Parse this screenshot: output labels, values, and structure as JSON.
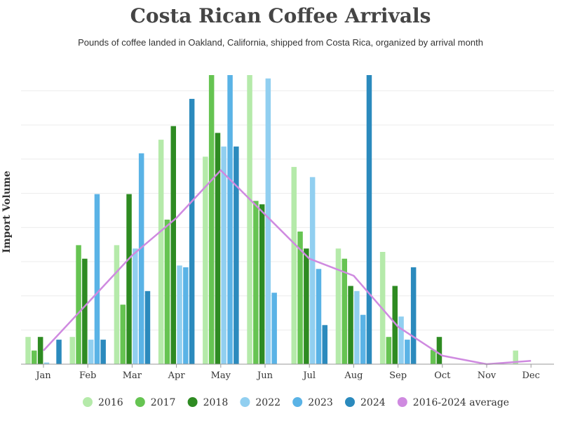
{
  "chart_data": {
    "type": "bar",
    "title": "Costa Rican Coffee Arrivals",
    "subtitle": "Pounds of coffee landed in Oakland, California, shipped from Costa Rica, organized by arrival month",
    "ylabel": "Import Volume",
    "xlabel": "",
    "categories": [
      "Jan",
      "Feb",
      "Mar",
      "Apr",
      "May",
      "Jun",
      "Jul",
      "Aug",
      "Sep",
      "Oct",
      "Nov",
      "Dec"
    ],
    "ylim": [
      0,
      8.5
    ],
    "grid": true,
    "legend_position": "bottom",
    "series": [
      {
        "name": "2016",
        "color": "#b5eaaa",
        "values": [
          0.8,
          0.8,
          3.5,
          6.6,
          6.1,
          8.5,
          5.8,
          3.4,
          3.3,
          0,
          0,
          0.4
        ]
      },
      {
        "name": "2017",
        "color": "#66c452",
        "values": [
          0.4,
          3.5,
          1.75,
          4.25,
          8.5,
          4.8,
          3.9,
          3.1,
          0.8,
          0.42,
          0,
          0
        ]
      },
      {
        "name": "2018",
        "color": "#2e8b22",
        "values": [
          0.8,
          3.1,
          5.0,
          7.0,
          6.8,
          4.7,
          3.4,
          2.3,
          2.3,
          0.8,
          0,
          0
        ]
      },
      {
        "name": "2022",
        "color": "#91cff0",
        "values": [
          0.05,
          0.72,
          3.4,
          2.9,
          6.4,
          8.4,
          5.5,
          2.15,
          1.4,
          0,
          0,
          0
        ]
      },
      {
        "name": "2023",
        "color": "#5ab3e6",
        "values": [
          0,
          5.0,
          6.2,
          2.85,
          8.5,
          2.1,
          2.8,
          1.45,
          0.72,
          0,
          0,
          0
        ]
      },
      {
        "name": "2024",
        "color": "#2b8abd",
        "values": [
          0.72,
          0.72,
          2.15,
          7.8,
          6.4,
          0,
          1.15,
          8.5,
          2.85,
          0,
          0,
          0
        ]
      }
    ],
    "line_series": {
      "name": "2016-2024 average",
      "color": "#cf8ae0",
      "values": [
        0.4,
        1.8,
        3.2,
        4.3,
        5.7,
        4.4,
        3.1,
        2.6,
        1.1,
        0.25,
        0.0,
        0.1
      ]
    }
  }
}
